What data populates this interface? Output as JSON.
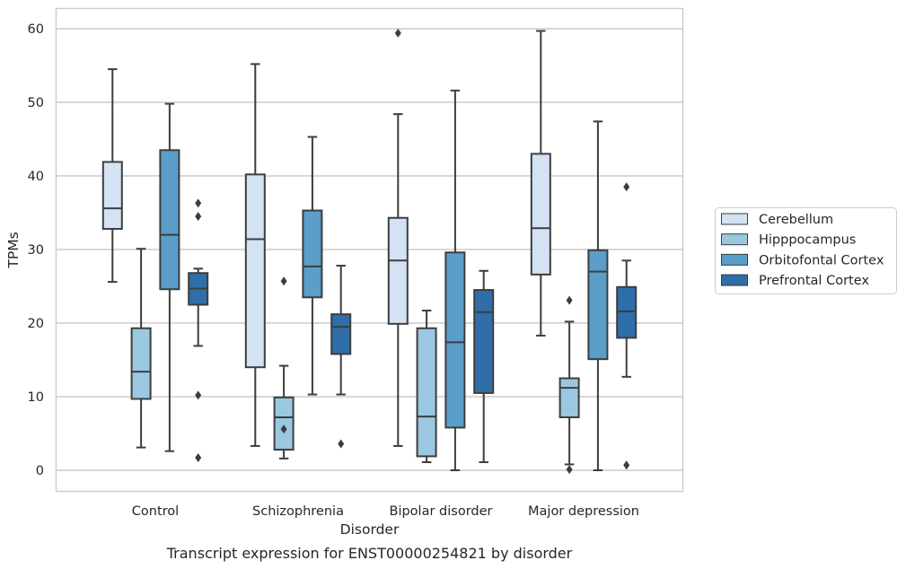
{
  "caption": "Transcript expression for ENST00000254821 by disorder",
  "chart_data": {
    "type": "box",
    "xlabel": "Disorder",
    "ylabel": "TPMs",
    "ylim": [
      -3,
      63
    ],
    "yticks": [
      0,
      10,
      20,
      30,
      40,
      50,
      60
    ],
    "grid": "horizontal",
    "legend_position": "right",
    "categories": [
      "Control",
      "Schizophrenia",
      "Bipolar disorder",
      "Major depression"
    ],
    "series": [
      {
        "name": "Cerebellum",
        "color": "#d3e3f3",
        "boxes": [
          {
            "whislo": 25.6,
            "q1": 32.8,
            "med": 35.6,
            "q3": 41.9,
            "whishi": 54.5,
            "fliers": []
          },
          {
            "whislo": 3.3,
            "q1": 14.0,
            "med": 31.4,
            "q3": 40.2,
            "whishi": 55.2,
            "fliers": []
          },
          {
            "whislo": 3.3,
            "q1": 19.9,
            "med": 28.5,
            "q3": 34.3,
            "whishi": 48.4,
            "fliers": [
              59.4
            ]
          },
          {
            "whislo": 18.3,
            "q1": 26.6,
            "med": 32.9,
            "q3": 43.0,
            "whishi": 59.7,
            "fliers": []
          }
        ]
      },
      {
        "name": "Hipppocampus",
        "color": "#9ac8e0",
        "boxes": [
          {
            "whislo": 3.1,
            "q1": 9.7,
            "med": 13.4,
            "q3": 19.3,
            "whishi": 30.1,
            "fliers": []
          },
          {
            "whislo": 1.6,
            "q1": 2.8,
            "med": 7.2,
            "q3": 9.9,
            "whishi": 14.2,
            "fliers": [
              25.7,
              5.6
            ]
          },
          {
            "whislo": 1.1,
            "q1": 1.9,
            "med": 7.3,
            "q3": 19.3,
            "whishi": 21.7,
            "fliers": []
          },
          {
            "whislo": 0.8,
            "q1": 7.2,
            "med": 11.2,
            "q3": 12.5,
            "whishi": 20.2,
            "fliers": [
              23.1,
              0.1
            ]
          }
        ]
      },
      {
        "name": "Orbitofontal Cortex",
        "color": "#5a9ec9",
        "boxes": [
          {
            "whislo": 2.6,
            "q1": 24.6,
            "med": 32.0,
            "q3": 43.5,
            "whishi": 49.8,
            "fliers": []
          },
          {
            "whislo": 10.3,
            "q1": 23.5,
            "med": 27.7,
            "q3": 35.3,
            "whishi": 45.3,
            "fliers": []
          },
          {
            "whislo": 0.0,
            "q1": 5.8,
            "med": 17.4,
            "q3": 29.6,
            "whishi": 51.6,
            "fliers": []
          },
          {
            "whislo": 0.0,
            "q1": 15.1,
            "med": 27.0,
            "q3": 29.9,
            "whishi": 47.4,
            "fliers": []
          }
        ]
      },
      {
        "name": "Prefrontal Cortex",
        "color": "#2f6ea8",
        "boxes": [
          {
            "whislo": 16.9,
            "q1": 22.5,
            "med": 24.7,
            "q3": 26.8,
            "whishi": 27.4,
            "fliers": [
              36.3,
              34.5,
              10.2,
              1.7
            ]
          },
          {
            "whislo": 10.3,
            "q1": 15.8,
            "med": 19.5,
            "q3": 21.2,
            "whishi": 27.8,
            "fliers": [
              3.6
            ]
          },
          {
            "whislo": 1.1,
            "q1": 10.5,
            "med": 21.5,
            "q3": 24.5,
            "whishi": 27.1,
            "fliers": []
          },
          {
            "whislo": 12.7,
            "q1": 18.0,
            "med": 21.6,
            "q3": 24.9,
            "whishi": 28.5,
            "fliers": [
              38.5,
              0.7
            ]
          }
        ]
      }
    ]
  }
}
